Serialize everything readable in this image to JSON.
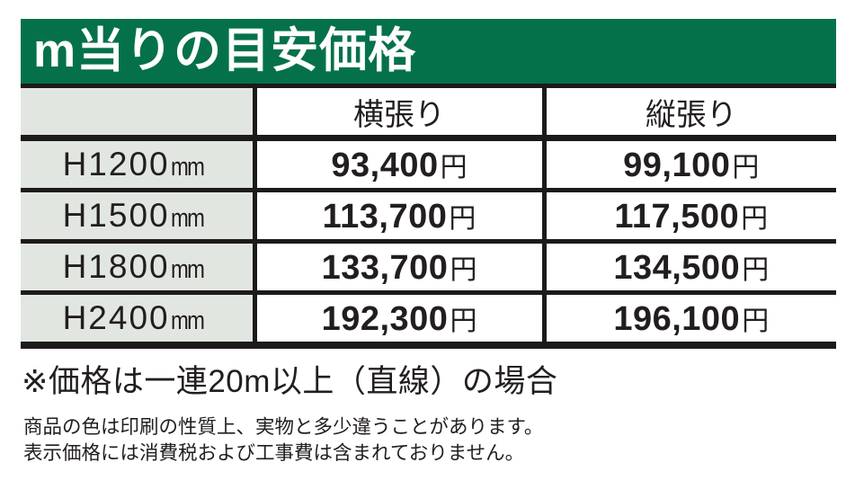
{
  "header": {
    "title": "m当りの目安価格"
  },
  "price_table": {
    "col_headers": [
      "横張り",
      "縦張り"
    ],
    "unit_suffix": "mm",
    "currency_suffix": "円",
    "rows": [
      {
        "label": "H1200",
        "horizontal": "93,400",
        "vertical": "99,100"
      },
      {
        "label": "H1500",
        "horizontal": "113,700",
        "vertical": "117,500"
      },
      {
        "label": "H1800",
        "horizontal": "133,700",
        "vertical": "134,500"
      },
      {
        "label": "H2400",
        "horizontal": "192,300",
        "vertical": "196,100"
      }
    ]
  },
  "note": "※価格は一連20m以上（直線）の場合",
  "footnotes": [
    "商品の色は印刷の性質上、実物と多少違うことがあります。",
    "表示価格には消費税および工事費は含まれておりません。"
  ],
  "colors": {
    "banner_green": "#05714A",
    "row_header_bg": "#E2E6E0",
    "border_black": "#1D1A1B"
  }
}
